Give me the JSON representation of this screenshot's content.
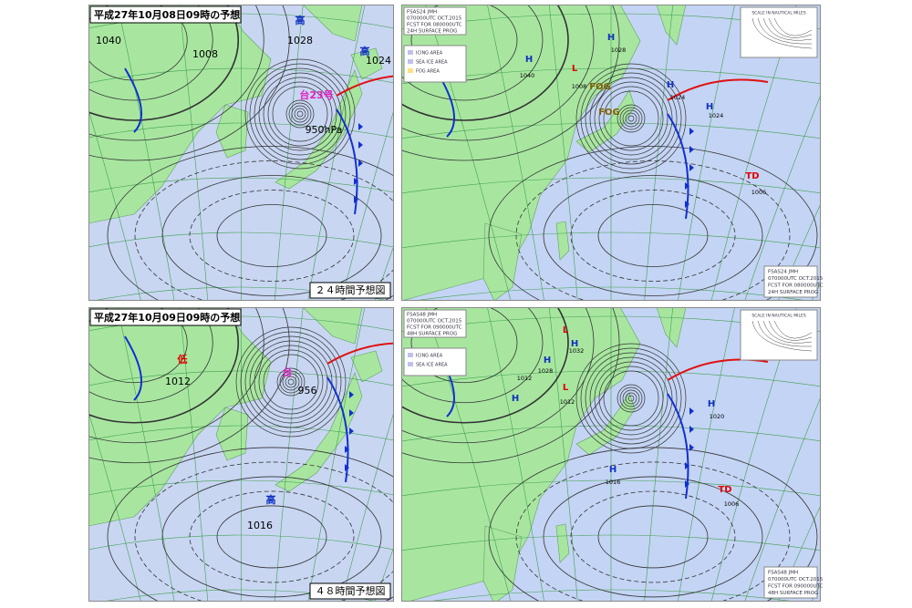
{
  "panels": [
    {
      "title": "平成27年10月08日09時の予想",
      "caption": "２４時間予想図",
      "labels": [
        "1040",
        "1008",
        "高",
        "1028",
        "高",
        "1024",
        "台23号",
        "950hPa"
      ]
    },
    {
      "header": [
        "FSAS24 JMH",
        "070000UTC OCT.2015",
        "FCST FOR 080000UTC",
        "24H SURFACE PROG"
      ],
      "legend": [
        "ICING AREA",
        "SEA ICE AREA",
        "FOG AREA"
      ],
      "scale": "SCALE IN NAUTICAL MILES",
      "labels": [
        "H",
        "1040",
        "L",
        "1008",
        "H",
        "1028",
        "H",
        "1024",
        "H",
        "1024",
        "TD",
        "1006",
        "FOG",
        "FOG"
      ]
    },
    {
      "title": "平成27年10月09日09時の予想",
      "caption": "４８時間予想図",
      "labels": [
        "低",
        "1012",
        "台",
        "956",
        "高",
        "1016"
      ]
    },
    {
      "header": [
        "FSAS48 JMH",
        "070000UTC OCT.2015",
        "FCST FOR 090000UTC",
        "48H SURFACE PROG"
      ],
      "legend": [
        "ICING AREA",
        "SEA ICE AREA"
      ],
      "scale": "SCALE IN NAUTICAL MILES",
      "labels": [
        "L",
        "H",
        "1032",
        "H",
        "1028",
        "H",
        "1012",
        "L",
        "1012",
        "H",
        "1020",
        "H",
        "1016",
        "TD",
        "1006"
      ]
    }
  ]
}
